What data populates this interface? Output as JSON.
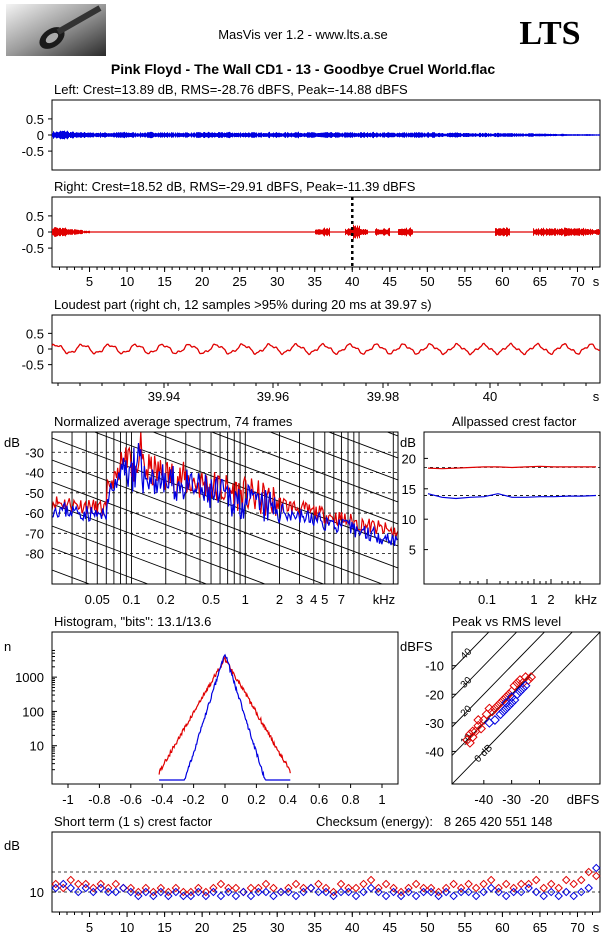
{
  "header": {
    "app_title": "MasVis ver 1.2 - www.lts.a.se",
    "brand": "LTS",
    "track_title": "Pink Floyd - The Wall CD1 - 13 - Goodbye Cruel World.flac"
  },
  "colors": {
    "left": "#0000e0",
    "right": "#e00000",
    "axis": "#000000",
    "grid": "#000000"
  },
  "chart_data": [
    {
      "id": "left-waveform",
      "type": "area",
      "title": "Left: Crest=13.89 dB, RMS=-28.76 dBFS, Peak=-14.88 dBFS",
      "ylim": [
        -1,
        1
      ],
      "y_ticks": [
        "0.5",
        "0",
        "-0.5"
      ],
      "duration_s": 73,
      "envelope": [
        0.12,
        0.15,
        0.11,
        0.09,
        0.1,
        0.08,
        0.09,
        0.08,
        0.09,
        0.1,
        0.09,
        0.08,
        0.09,
        0.1,
        0.09,
        0.09,
        0.08,
        0.09,
        0.08,
        0.09,
        0.1,
        0.09,
        0.09,
        0.1,
        0.08,
        0.09,
        0.09,
        0.08,
        0.1,
        0.09,
        0.08,
        0.09,
        0.1,
        0.09,
        0.09,
        0.08,
        0.09,
        0.09,
        0.08,
        0.09,
        0.08,
        0.09,
        0.1,
        0.08,
        0.09,
        0.08,
        0.09,
        0.08,
        0.09,
        0.08,
        0.09,
        0.08,
        0.07,
        0.08,
        0.07,
        0.08,
        0.07,
        0.07,
        0.06,
        0.07,
        0.06,
        0.06,
        0.05,
        0.06,
        0.05,
        0.05,
        0.04,
        0.04,
        0.04,
        0.03,
        0.03,
        0.03,
        0.02
      ]
    },
    {
      "id": "right-waveform",
      "type": "area",
      "title": "Right: Crest=18.52 dB, RMS=-29.91 dBFS, Peak=-11.39 dBFS",
      "ylim": [
        -1,
        1
      ],
      "y_ticks": [
        "0.5",
        "0",
        "-0.5"
      ],
      "x_ticks": [
        "5",
        "10",
        "15",
        "20",
        "25",
        "30",
        "35",
        "40",
        "45",
        "50",
        "55",
        "60",
        "65",
        "70",
        "s"
      ],
      "duration_s": 73,
      "marker_s": 40,
      "envelope": [
        0.16,
        0.14,
        0.1,
        0.08,
        0.04,
        0.02,
        0.01,
        0.01,
        0.01,
        0.01,
        0.01,
        0.01,
        0.01,
        0.01,
        0.01,
        0.01,
        0.01,
        0.01,
        0.01,
        0.01,
        0.01,
        0.01,
        0.01,
        0.01,
        0.01,
        0.01,
        0.01,
        0.01,
        0.01,
        0.01,
        0.01,
        0.01,
        0.01,
        0.01,
        0.01,
        0.12,
        0.14,
        0.01,
        0.01,
        0.12,
        0.25,
        0.12,
        0.01,
        0.12,
        0.13,
        0.01,
        0.12,
        0.14,
        0.01,
        0.01,
        0.01,
        0.01,
        0.01,
        0.01,
        0.01,
        0.01,
        0.01,
        0.01,
        0.01,
        0.13,
        0.15,
        0.01,
        0.01,
        0.01,
        0.12,
        0.13,
        0.12,
        0.13,
        0.14,
        0.12,
        0.13,
        0.12,
        0.1
      ]
    },
    {
      "id": "loudest-part",
      "type": "line",
      "title": "Loudest part (right ch, 12 samples >95% during 20 ms at 39.97 s)",
      "ylim": [
        -1,
        1
      ],
      "y_ticks": [
        "0.5",
        "0",
        "-0.5"
      ],
      "x_ticks": [
        "39.94",
        "39.96",
        "39.98",
        "40",
        "s"
      ]
    },
    {
      "id": "average-spectrum",
      "type": "line",
      "title": "Normalized average spectrum, 74 frames",
      "ylabel": "dB",
      "y_ticks": [
        "-30",
        "-40",
        "-50",
        "-60",
        "-70",
        "-80"
      ],
      "x_ticks": [
        "0.05",
        "0.1",
        "0.2",
        "0.5",
        "1",
        "2",
        "3",
        "4",
        "5",
        "7",
        "kHz"
      ]
    },
    {
      "id": "allpassed-crest",
      "type": "line",
      "title": "Allpassed crest factor",
      "ylabel": "dB",
      "y_ticks": [
        "20",
        "15",
        "10",
        "5"
      ],
      "x_ticks": [
        "0.1",
        "1",
        "2",
        "kHz"
      ],
      "ylim": [
        0,
        25
      ],
      "series": [
        {
          "name": "Right",
          "values": [
            18.4,
            18.3,
            18.4,
            18.5,
            18.6,
            18.6,
            18.5,
            18.6,
            18.7,
            18.6,
            18.6,
            18.6,
            18.6
          ]
        },
        {
          "name": "Left",
          "values": [
            14.2,
            13.6,
            13.4,
            13.6,
            13.7,
            14.2,
            13.6,
            13.6,
            13.7,
            13.7,
            13.8,
            13.8,
            13.9
          ]
        }
      ]
    },
    {
      "id": "histogram",
      "type": "line",
      "title": "Histogram, \"bits\": 13.1/13.6",
      "ylabel": "n",
      "y_ticks": [
        "1000",
        "100",
        "10"
      ],
      "x_ticks": [
        "-1",
        "-0.8",
        "-0.6",
        "-0.4",
        "-0.2",
        "0",
        "0.2",
        "0.4",
        "0.6",
        "0.8",
        "1"
      ]
    },
    {
      "id": "peak-vs-rms",
      "type": "scatter",
      "title": "Peak vs RMS level",
      "ylabel": "dBFS",
      "xlabel": "dBFS",
      "y_ticks": [
        "-10",
        "-20",
        "-30",
        "-40"
      ],
      "x_ticks": [
        "-40",
        "-30",
        "-20"
      ],
      "diagonal_labels": [
        "40",
        "30",
        "20",
        "10",
        "0 dB"
      ],
      "xlim": [
        -50,
        0
      ],
      "ylim": [
        -50,
        0
      ],
      "series": [
        {
          "name": "Right",
          "points": [
            [
              -46,
              -36
            ],
            [
              -45,
              -34
            ],
            [
              -44,
              -35
            ],
            [
              -43,
              -33
            ],
            [
              -42,
              -31
            ],
            [
              -41,
              -32
            ],
            [
              -40,
              -29
            ],
            [
              -39,
              -27
            ],
            [
              -38,
              -25
            ],
            [
              -37,
              -26
            ],
            [
              -35,
              -24
            ],
            [
              -33,
              -22
            ],
            [
              -31,
              -20
            ],
            [
              -30,
              -19
            ],
            [
              -29,
              -17
            ],
            [
              -28,
              -16
            ],
            [
              -27,
              -15
            ],
            [
              -26,
              -16
            ],
            [
              -25,
              -14
            ],
            [
              -24,
              -15
            ],
            [
              -23,
              -14
            ],
            [
              -34,
              -23
            ],
            [
              -32,
              -21
            ],
            [
              -36,
              -25
            ],
            [
              -45,
              -37
            ],
            [
              -44,
              -33
            ],
            [
              -42,
              -29
            ]
          ]
        },
        {
          "name": "Left",
          "points": [
            [
              -38,
              -30
            ],
            [
              -36,
              -29
            ],
            [
              -34,
              -27
            ],
            [
              -33,
              -26
            ],
            [
              -32,
              -25
            ],
            [
              -31,
              -24
            ],
            [
              -30,
              -23
            ],
            [
              -29,
              -22
            ],
            [
              -28,
              -20
            ],
            [
              -27,
              -19
            ],
            [
              -26,
              -18
            ],
            [
              -25,
              -17
            ],
            [
              -30,
              -21
            ],
            [
              -32,
              -23
            ]
          ]
        }
      ]
    },
    {
      "id": "short-term-crest",
      "type": "scatter",
      "title": "Short term (1 s) crest factor",
      "checksum": "Checksum (energy):   8 265 420 551 148",
      "ylabel": "dB",
      "y_ticks": [
        "10"
      ],
      "x_ticks": [
        "5",
        "10",
        "15",
        "20",
        "25",
        "30",
        "35",
        "40",
        "45",
        "50",
        "55",
        "60",
        "65",
        "70",
        "s"
      ],
      "ylim": [
        5,
        25
      ],
      "series": [
        {
          "name": "Right",
          "values": [
            12,
            11,
            13,
            12,
            12,
            11,
            12,
            11,
            12,
            11,
            11,
            10,
            11,
            10,
            11,
            10,
            11,
            10,
            10,
            11,
            10,
            11,
            12,
            11,
            11,
            10,
            11,
            11,
            12,
            11,
            10,
            11,
            12,
            11,
            11,
            12,
            11,
            10,
            12,
            11,
            11,
            12,
            13,
            11,
            12,
            11,
            10,
            11,
            12,
            11,
            11,
            10,
            11,
            12,
            11,
            12,
            11,
            12,
            13,
            11,
            12,
            11,
            12,
            12,
            13,
            11,
            12,
            11,
            13,
            12,
            13,
            15,
            14
          ]
        },
        {
          "name": "Left",
          "values": [
            11,
            12,
            11,
            10,
            11,
            10,
            11,
            10,
            10,
            11,
            10,
            9,
            10,
            9,
            10,
            9,
            10,
            9,
            9,
            10,
            9,
            10,
            9,
            10,
            9,
            10,
            9,
            10,
            10,
            9,
            10,
            10,
            9,
            10,
            11,
            10,
            10,
            9,
            10,
            10,
            9,
            10,
            11,
            10,
            9,
            10,
            9,
            10,
            9,
            10,
            10,
            9,
            10,
            9,
            10,
            10,
            9,
            10,
            11,
            10,
            9,
            10,
            10,
            11,
            10,
            9,
            10,
            9,
            10,
            9,
            10,
            11,
            16
          ]
        }
      ]
    }
  ]
}
